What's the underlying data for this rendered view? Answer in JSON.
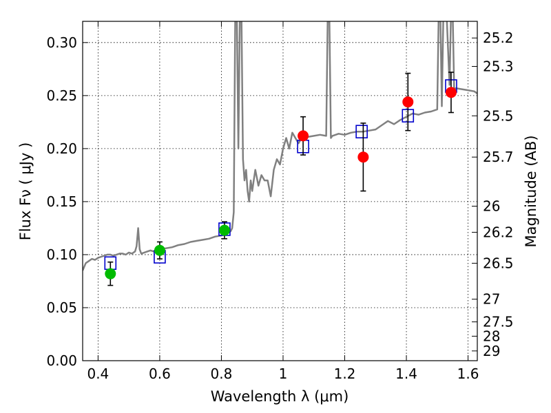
{
  "chart_data": {
    "type": "scatter",
    "xlabel": "Wavelength  λ (μm)",
    "ylabel": "Flux  Fν  ( μJy )",
    "ylabel_right": "Magnitude (AB)",
    "xlim": [
      0.35,
      1.63
    ],
    "ylim": [
      0.0,
      0.32
    ],
    "grid": true,
    "x_ticks": [
      0.4,
      0.6,
      0.8,
      1.0,
      1.2,
      1.4,
      1.6
    ],
    "x_tick_labels": [
      "0.4",
      "0.6",
      "0.8",
      "1",
      "1.2",
      "1.4",
      "1.6"
    ],
    "y_ticks": [
      0.0,
      0.05,
      0.1,
      0.15,
      0.2,
      0.25,
      0.3
    ],
    "y_tick_labels": [
      "0.00",
      "0.05",
      "0.10",
      "0.15",
      "0.20",
      "0.25",
      "0.30"
    ],
    "right_ticks": [
      {
        "label": "25.2",
        "flux": 0.3043
      },
      {
        "label": "25.3",
        "flux": 0.2775
      },
      {
        "label": "25.5",
        "flux": 0.2309
      },
      {
        "label": "25.7",
        "flux": 0.192
      },
      {
        "label": "26",
        "flux": 0.1457
      },
      {
        "label": "26.2",
        "flux": 0.1211
      },
      {
        "label": "26.5",
        "flux": 0.0919
      },
      {
        "label": "27",
        "flux": 0.058
      },
      {
        "label": "27.5",
        "flux": 0.0366
      },
      {
        "label": "28",
        "flux": 0.0231
      },
      {
        "label": "29",
        "flux": 0.0092
      }
    ],
    "series": [
      {
        "kind": "spectrum",
        "color": "#808080",
        "x": [
          0.35,
          0.36,
          0.37,
          0.38,
          0.39,
          0.4,
          0.41,
          0.42,
          0.43,
          0.44,
          0.45,
          0.46,
          0.47,
          0.48,
          0.49,
          0.5,
          0.51,
          0.52,
          0.525,
          0.53,
          0.535,
          0.54,
          0.55,
          0.56,
          0.57,
          0.58,
          0.59,
          0.6,
          0.62,
          0.64,
          0.66,
          0.68,
          0.7,
          0.72,
          0.74,
          0.76,
          0.78,
          0.8,
          0.81,
          0.82,
          0.83,
          0.835,
          0.84,
          0.845,
          0.85,
          0.855,
          0.86,
          0.865,
          0.87,
          0.875,
          0.88,
          0.885,
          0.89,
          0.895,
          0.9,
          0.905,
          0.91,
          0.92,
          0.93,
          0.94,
          0.95,
          0.96,
          0.97,
          0.98,
          0.99,
          1.0,
          1.01,
          1.02,
          1.03,
          1.04,
          1.05,
          1.06,
          1.08,
          1.1,
          1.12,
          1.14,
          1.145,
          1.15,
          1.155,
          1.16,
          1.18,
          1.2,
          1.22,
          1.24,
          1.26,
          1.28,
          1.3,
          1.32,
          1.34,
          1.36,
          1.38,
          1.4,
          1.42,
          1.44,
          1.46,
          1.48,
          1.5,
          1.505,
          1.51,
          1.515,
          1.52,
          1.53,
          1.54,
          1.545,
          1.55,
          1.555,
          1.56,
          1.58,
          1.6,
          1.62,
          1.63
        ],
        "y": [
          0.085,
          0.092,
          0.094,
          0.096,
          0.095,
          0.097,
          0.098,
          0.099,
          0.1,
          0.1,
          0.099,
          0.1,
          0.101,
          0.101,
          0.1,
          0.102,
          0.101,
          0.103,
          0.108,
          0.125,
          0.105,
          0.101,
          0.102,
          0.103,
          0.104,
          0.103,
          0.104,
          0.105,
          0.106,
          0.107,
          0.109,
          0.11,
          0.112,
          0.113,
          0.114,
          0.115,
          0.117,
          0.118,
          0.119,
          0.12,
          0.122,
          0.125,
          0.14,
          0.33,
          0.33,
          0.2,
          0.33,
          0.33,
          0.19,
          0.17,
          0.18,
          0.16,
          0.15,
          0.17,
          0.16,
          0.17,
          0.18,
          0.165,
          0.175,
          0.17,
          0.17,
          0.155,
          0.18,
          0.19,
          0.185,
          0.2,
          0.21,
          0.2,
          0.215,
          0.21,
          0.205,
          0.21,
          0.211,
          0.212,
          0.213,
          0.212,
          0.33,
          0.33,
          0.21,
          0.212,
          0.214,
          0.213,
          0.215,
          0.216,
          0.216,
          0.217,
          0.218,
          0.222,
          0.226,
          0.223,
          0.227,
          0.23,
          0.233,
          0.232,
          0.234,
          0.235,
          0.237,
          0.33,
          0.33,
          0.24,
          0.33,
          0.33,
          0.26,
          0.33,
          0.33,
          0.255,
          0.257,
          0.256,
          0.255,
          0.254,
          0.252
        ]
      },
      {
        "kind": "model-boxes",
        "color": "#0000cc",
        "x": [
          0.44,
          0.6,
          0.81,
          1.065,
          1.255,
          1.405,
          1.545
        ],
        "y": [
          0.092,
          0.098,
          0.124,
          0.202,
          0.216,
          0.231,
          0.259
        ]
      },
      {
        "kind": "observed-green",
        "color": "#00bb00",
        "x": [
          0.44,
          0.6,
          0.81
        ],
        "y": [
          0.082,
          0.104,
          0.123
        ],
        "err": [
          0.011,
          0.008,
          0.008
        ]
      },
      {
        "kind": "observed-red",
        "color": "#ff0000",
        "x": [
          1.065,
          1.26,
          1.405,
          1.545
        ],
        "y": [
          0.212,
          0.192,
          0.244,
          0.253
        ],
        "err": [
          0.018,
          0.032,
          0.027,
          0.019
        ]
      }
    ]
  }
}
